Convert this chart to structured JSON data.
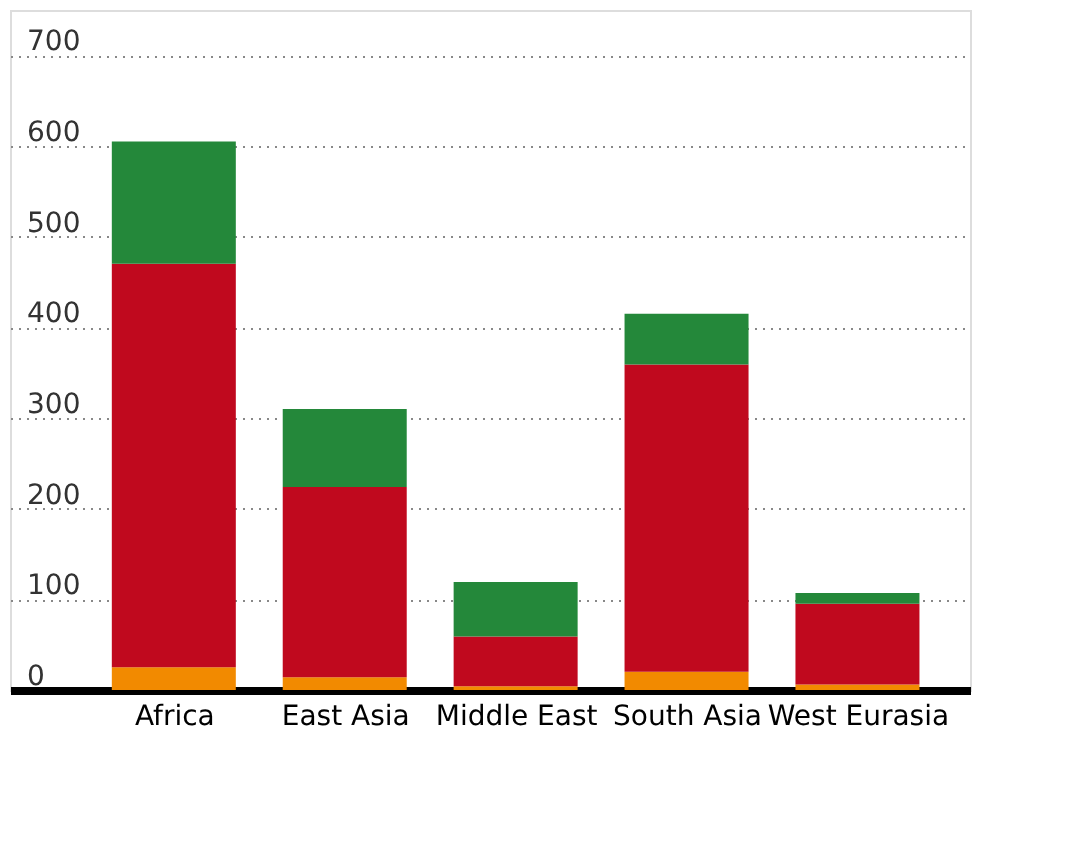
{
  "chart_data": {
    "type": "bar",
    "stacked": true,
    "categories": [
      "Africa",
      "East Asia",
      "Middle East",
      "South Asia",
      "West Eurasia"
    ],
    "series": [
      {
        "color": "#f28a00",
        "values": [
          25,
          14,
          4,
          20,
          6
        ]
      },
      {
        "color": "#c0091e",
        "values": [
          445,
          210,
          55,
          339,
          89
        ]
      },
      {
        "color": "#24883a",
        "values": [
          135,
          86,
          60,
          56,
          12
        ]
      }
    ],
    "ylim": [
      0,
      750
    ],
    "yticks": [
      0,
      100,
      200,
      300,
      400,
      500,
      600,
      700
    ],
    "grid": "y",
    "legend": false
  }
}
